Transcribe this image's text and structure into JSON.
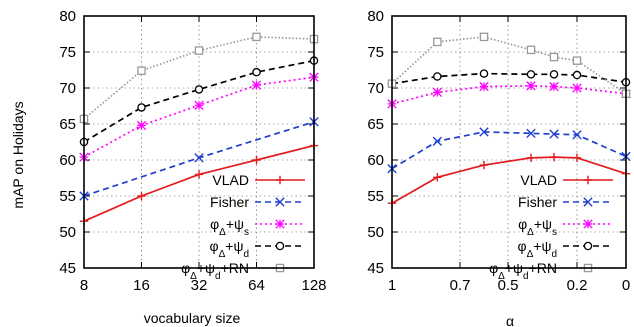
{
  "chart_data": [
    {
      "type": "line",
      "xlabel": "vocabulary size",
      "ylabel": "mAP on Holidays",
      "categories": [
        "8",
        "16",
        "32",
        "64",
        "128"
      ],
      "ylim": [
        45,
        80
      ],
      "yticks": [
        45,
        50,
        55,
        60,
        65,
        70,
        75,
        80
      ],
      "grid": true,
      "legend_position": "bottom-right",
      "series": [
        {
          "name": "VLAD",
          "values": [
            51.5,
            55.0,
            58.0,
            60.0,
            62.0
          ],
          "color": "#e41a1c",
          "marker": "plus",
          "dash": ""
        },
        {
          "name": "Fisher",
          "values": [
            55.0,
            null,
            60.3,
            null,
            65.3
          ],
          "color": "#1f3fd0",
          "marker": "x",
          "dash": "6 4"
        },
        {
          "name": "φΔ+ψs",
          "values": [
            60.4,
            64.8,
            67.6,
            70.4,
            71.5
          ],
          "color": "#ff00ff",
          "marker": "asterisk",
          "dash": "2 3"
        },
        {
          "name": "φΔ+ψd",
          "values": [
            62.5,
            67.3,
            69.8,
            72.2,
            73.8
          ],
          "color": "#000000",
          "marker": "circle",
          "dash": "6 4"
        },
        {
          "name": "φΔ+ψd+RN",
          "values": [
            65.7,
            72.4,
            75.2,
            77.1,
            76.8
          ],
          "color": "#999999",
          "marker": "square",
          "dash": "1.5 2"
        }
      ]
    },
    {
      "type": "line",
      "xlabel": "α",
      "ylabel": "",
      "categories": [
        "1",
        "0.7",
        "0.5",
        "0.2",
        "0"
      ],
      "x": [
        1,
        0.7,
        0.5,
        0.2,
        0
      ],
      "xlim": [
        1,
        0
      ],
      "ylim": [
        45,
        80
      ],
      "yticks": [
        45,
        50,
        55,
        60,
        65,
        70,
        75,
        80
      ],
      "grid": true,
      "legend_position": "bottom-right",
      "series": [
        {
          "name": "VLAD",
          "x": [
            1,
            0.8,
            0.6,
            0.4,
            0.3,
            0.2,
            0
          ],
          "values": [
            54.0,
            57.6,
            59.3,
            60.3,
            60.4,
            60.3,
            58.1
          ],
          "color": "#e41a1c",
          "marker": "plus",
          "dash": ""
        },
        {
          "name": "Fisher",
          "x": [
            1,
            0.8,
            0.6,
            0.4,
            0.3,
            0.2,
            0
          ],
          "values": [
            58.8,
            62.6,
            63.9,
            63.7,
            63.6,
            63.5,
            60.5
          ],
          "color": "#1f3fd0",
          "marker": "x",
          "dash": "6 4"
        },
        {
          "name": "φΔ+ψs",
          "x": [
            1,
            0.8,
            0.6,
            0.4,
            0.3,
            0.2,
            0
          ],
          "values": [
            67.8,
            69.4,
            70.2,
            70.3,
            70.2,
            70.0,
            69.2
          ],
          "color": "#ff00ff",
          "marker": "asterisk",
          "dash": "2 3"
        },
        {
          "name": "φΔ+ψd",
          "x": [
            1,
            0.8,
            0.6,
            0.4,
            0.3,
            0.2,
            0
          ],
          "values": [
            70.6,
            71.6,
            72.0,
            71.9,
            71.9,
            71.8,
            70.8
          ],
          "color": "#000000",
          "marker": "circle",
          "dash": "6 4"
        },
        {
          "name": "φΔ+ψd+RN",
          "x": [
            1,
            0.8,
            0.6,
            0.4,
            0.3,
            0.2,
            0
          ],
          "values": [
            70.6,
            76.4,
            77.1,
            75.3,
            74.3,
            73.8,
            69.2
          ],
          "color": "#999999",
          "marker": "square",
          "dash": "1.5 2"
        }
      ]
    }
  ]
}
